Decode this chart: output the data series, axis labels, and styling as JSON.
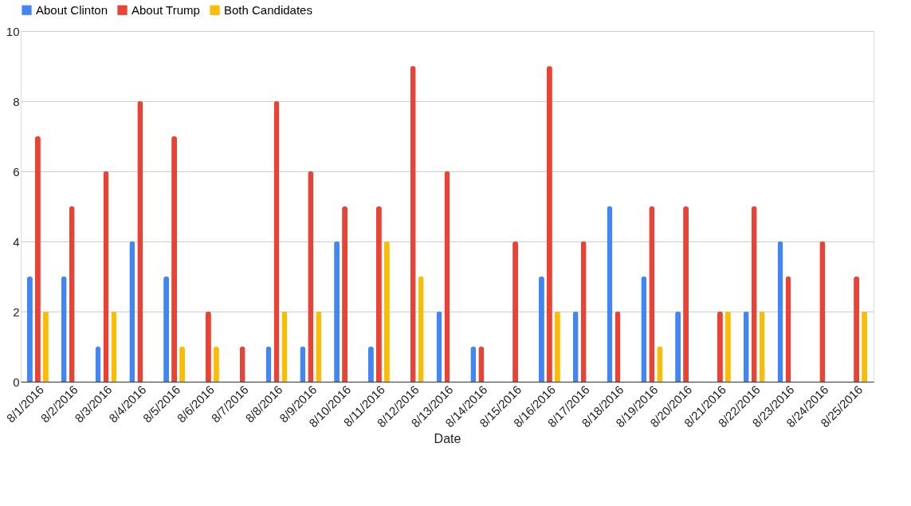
{
  "chart_data": {
    "type": "bar",
    "xlabel": "Date",
    "categories": [
      "8/1/2016",
      "8/2/2016",
      "8/3/2016",
      "8/4/2016",
      "8/5/2016",
      "8/6/2016",
      "8/7/2016",
      "8/8/2016",
      "8/9/2016",
      "8/10/2016",
      "8/11/2016",
      "8/12/2016",
      "8/13/2016",
      "8/14/2016",
      "8/15/2016",
      "8/16/2016",
      "8/17/2016",
      "8/18/2016",
      "8/19/2016",
      "8/20/2016",
      "8/21/2016",
      "8/22/2016",
      "8/23/2016",
      "8/24/2016",
      "8/25/2016"
    ],
    "series": [
      {
        "name": "About Clinton",
        "color": "#4285f4",
        "values": [
          3,
          3,
          1,
          4,
          3,
          0,
          0,
          1,
          1,
          4,
          1,
          0,
          2,
          1,
          0,
          3,
          2,
          5,
          3,
          2,
          0,
          2,
          4,
          0,
          0
        ]
      },
      {
        "name": "About Trump",
        "color": "#ea4335",
        "values": [
          7,
          5,
          6,
          8,
          7,
          2,
          1,
          8,
          6,
          5,
          5,
          9,
          6,
          1,
          4,
          9,
          4,
          2,
          5,
          5,
          2,
          5,
          3,
          4,
          3
        ]
      },
      {
        "name": "Both Candidates",
        "color": "#fbbc04",
        "values": [
          2,
          0,
          2,
          0,
          1,
          1,
          0,
          2,
          2,
          0,
          4,
          3,
          0,
          0,
          0,
          2,
          0,
          0,
          1,
          0,
          2,
          2,
          0,
          0,
          2
        ]
      }
    ],
    "ylim": [
      0,
      10
    ],
    "yticks": [
      0,
      2,
      4,
      6,
      8,
      10
    ],
    "grid": "y",
    "legend": "top"
  }
}
